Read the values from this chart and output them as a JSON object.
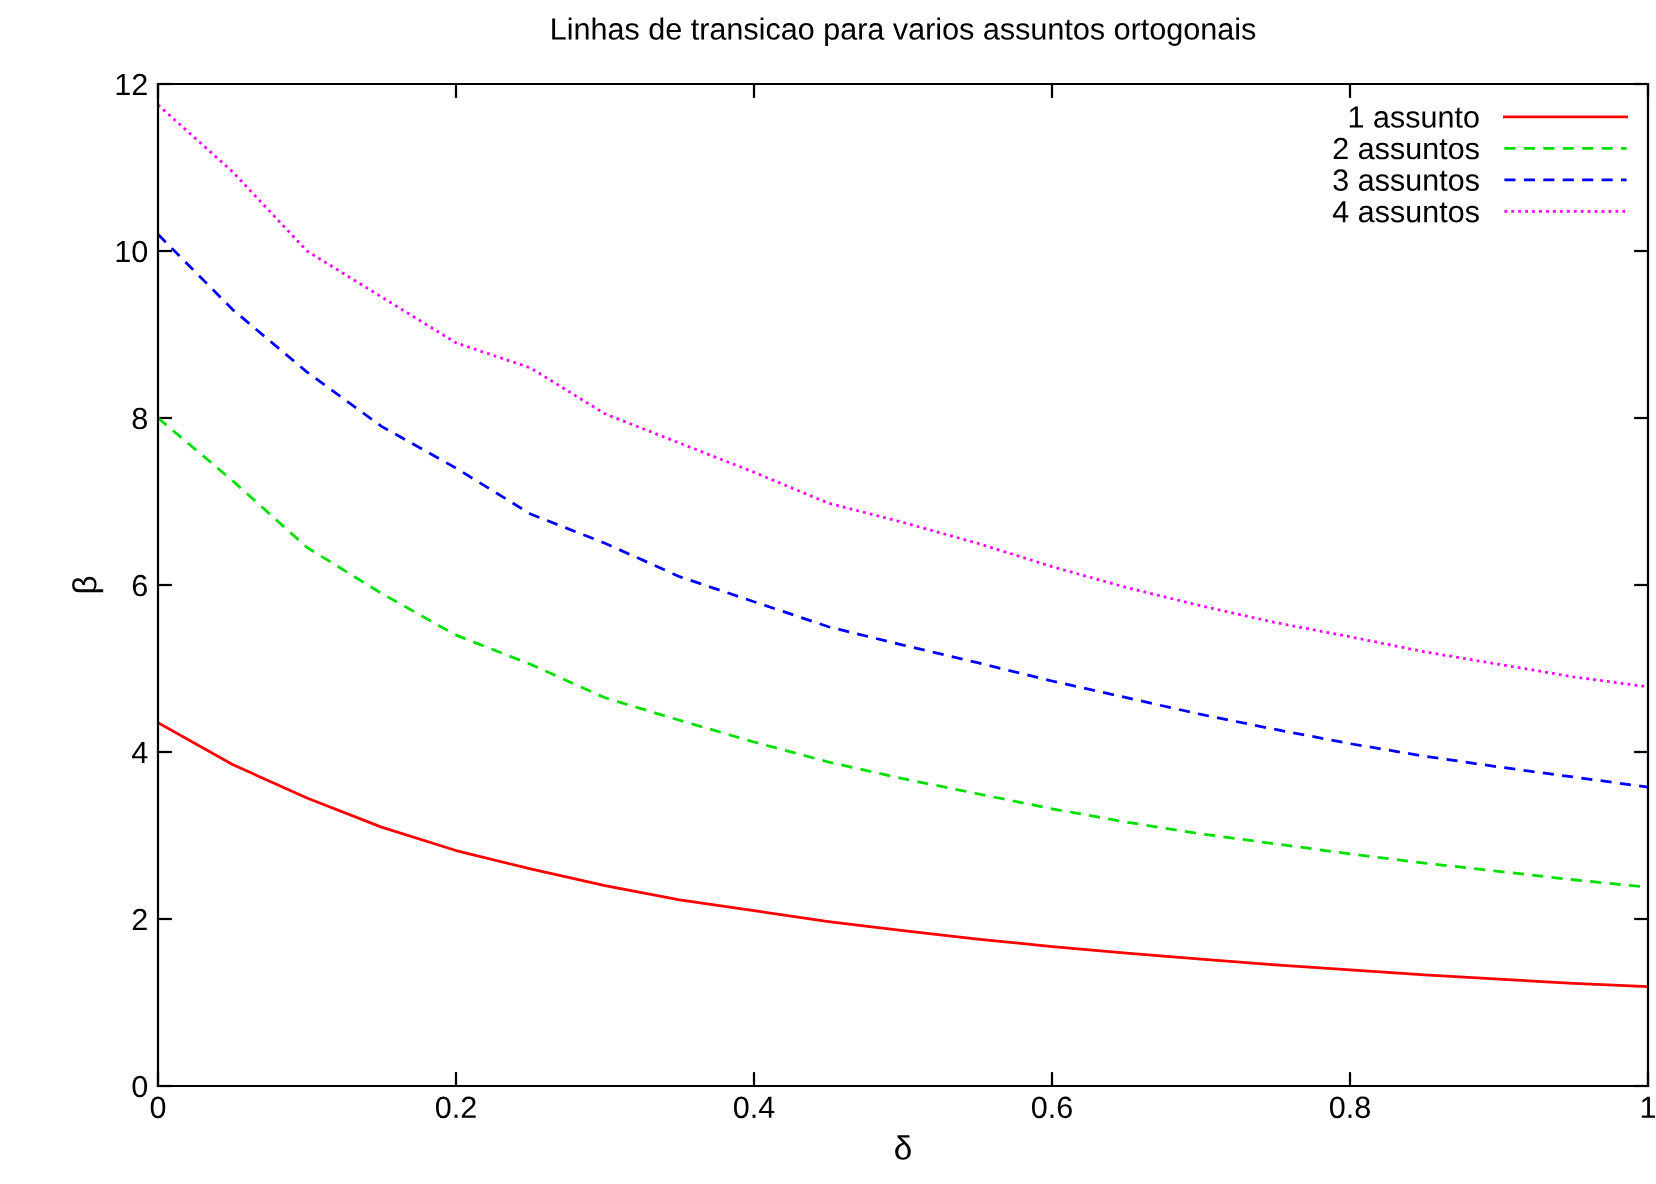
{
  "chart_data": {
    "type": "line",
    "title": "Linhas de transicao para varios assuntos ortogonais",
    "xlabel": "δ",
    "ylabel": "β",
    "x": [
      0,
      0.05,
      0.1,
      0.15,
      0.2,
      0.25,
      0.3,
      0.35,
      0.4,
      0.45,
      0.5,
      0.55,
      0.6,
      0.65,
      0.7,
      0.75,
      0.8,
      0.85,
      0.9,
      0.95,
      1
    ],
    "series": [
      {
        "name": "1 assunto",
        "color": "#ff0000",
        "line_style": "solid",
        "values": [
          4.35,
          3.85,
          3.45,
          3.1,
          2.82,
          2.6,
          2.4,
          2.23,
          2.1,
          1.97,
          1.86,
          1.76,
          1.67,
          1.59,
          1.52,
          1.45,
          1.39,
          1.33,
          1.28,
          1.23,
          1.19
        ]
      },
      {
        "name": "2 assuntos",
        "color": "#00e000",
        "line_style": "dashed",
        "values": [
          8.0,
          7.25,
          6.45,
          5.9,
          5.4,
          5.05,
          4.65,
          4.38,
          4.12,
          3.88,
          3.68,
          3.5,
          3.32,
          3.16,
          3.02,
          2.9,
          2.78,
          2.67,
          2.57,
          2.47,
          2.38
        ]
      },
      {
        "name": "3 assuntos",
        "color": "#0000ff",
        "line_style": "dashed",
        "values": [
          10.2,
          9.3,
          8.55,
          7.9,
          7.4,
          6.85,
          6.5,
          6.1,
          5.8,
          5.5,
          5.28,
          5.07,
          4.85,
          4.65,
          4.45,
          4.27,
          4.1,
          3.95,
          3.82,
          3.7,
          3.58
        ]
      },
      {
        "name": "4 assuntos",
        "color": "#ff00ff",
        "line_style": "dotted",
        "values": [
          11.75,
          10.95,
          10.0,
          9.45,
          8.9,
          8.6,
          8.05,
          7.7,
          7.35,
          6.98,
          6.75,
          6.5,
          6.22,
          5.97,
          5.75,
          5.55,
          5.38,
          5.2,
          5.05,
          4.9,
          4.78
        ]
      }
    ],
    "xlim": [
      0,
      1
    ],
    "xticks": [
      {
        "value": 0,
        "label": "0"
      },
      0.2,
      0.4,
      0.6,
      0.8,
      {
        "value": 1,
        "label": "1"
      }
    ],
    "ylim": [
      0,
      12
    ],
    "yticks": [
      0,
      2,
      4,
      6,
      8,
      10,
      12
    ],
    "grid": false,
    "legend": "top right",
    "marker": "none"
  }
}
